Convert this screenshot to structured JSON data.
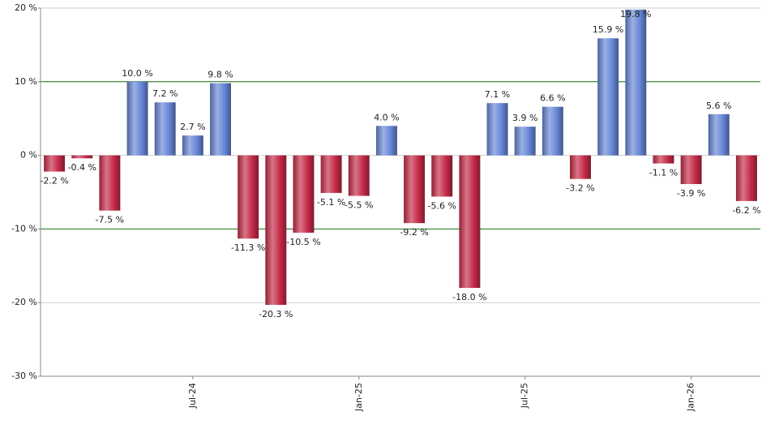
{
  "chart_data": {
    "type": "bar",
    "categories": [
      null,
      null,
      null,
      null,
      null,
      "Jul-24",
      null,
      null,
      null,
      null,
      null,
      "Jan-25",
      null,
      null,
      null,
      null,
      null,
      "Jul-25",
      null,
      null,
      null,
      null,
      null,
      "Jan-26",
      null,
      null
    ],
    "values": [
      -2.2,
      -0.4,
      -7.5,
      10.0,
      7.2,
      2.7,
      9.8,
      -11.3,
      -20.3,
      -10.5,
      -5.1,
      -5.5,
      4.0,
      -9.2,
      -5.6,
      -18.0,
      7.1,
      3.9,
      6.6,
      -3.2,
      15.9,
      19.8,
      -1.1,
      -3.9,
      5.6,
      -6.2
    ],
    "value_labels": [
      "-2.2 %",
      "-0.4 %",
      "-7.5 %",
      "10.0 %",
      "7.2 %",
      "2.7 %",
      "9.8 %",
      "-11.3 %",
      "-20.3 %",
      "-10.5 %",
      "-5.1 %",
      "-5.5 %",
      "4.0 %",
      "-9.2 %",
      "-5.6 %",
      "-18.0 %",
      "7.1 %",
      "3.9 %",
      "6.6 %",
      "-3.2 %",
      "15.9 %",
      "19.8 %",
      "-1.1 %",
      "-3.9 %",
      "5.6 %",
      "-6.2 %"
    ],
    "colors": {
      "positive": "#6585d6",
      "negative": "#c42a47"
    },
    "ylim": [
      -30,
      20
    ],
    "yticks": [
      {
        "value": -30,
        "label": "-30 %"
      },
      {
        "value": -20,
        "label": "-20 %"
      },
      {
        "value": -10,
        "label": "-10 %"
      },
      {
        "value": 0,
        "label": "0 %"
      },
      {
        "value": 10,
        "label": "10 %"
      },
      {
        "value": 20,
        "label": "20 %"
      }
    ],
    "grid": true,
    "reference_lines": [
      10,
      -10
    ],
    "reference_color": "#1a7a1a"
  }
}
